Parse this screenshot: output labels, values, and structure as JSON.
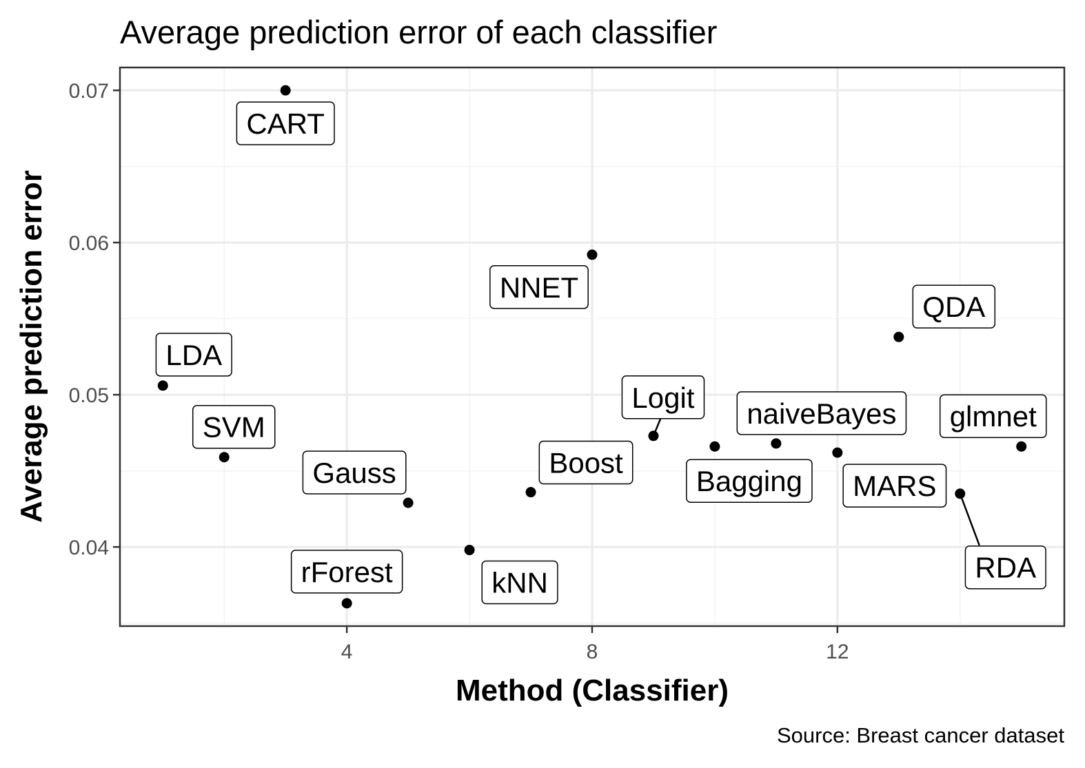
{
  "chart_data": {
    "type": "scatter",
    "title": "Average prediction error of each classifier",
    "xlabel": "Method (Classifier)",
    "ylabel": "Average prediction error",
    "caption": "Source: Breast cancer dataset",
    "xlim": [
      0.3,
      15.7
    ],
    "ylim": [
      0.0348,
      0.0715
    ],
    "x_ticks": [
      4,
      8,
      12
    ],
    "x_tick_labels": [
      "4",
      "8",
      "12"
    ],
    "y_ticks": [
      0.04,
      0.05,
      0.06,
      0.07
    ],
    "y_tick_labels": [
      "0.04",
      "0.05",
      "0.06",
      "0.07"
    ],
    "grid": true,
    "points": [
      {
        "label": "LDA",
        "x": 1,
        "y": 0.0506
      },
      {
        "label": "SVM",
        "x": 2,
        "y": 0.0459
      },
      {
        "label": "CART",
        "x": 3,
        "y": 0.07
      },
      {
        "label": "rForest",
        "x": 4,
        "y": 0.0363
      },
      {
        "label": "Gauss",
        "x": 5,
        "y": 0.0429
      },
      {
        "label": "kNN",
        "x": 6,
        "y": 0.0398
      },
      {
        "label": "Boost",
        "x": 7,
        "y": 0.0436
      },
      {
        "label": "NNET",
        "x": 8,
        "y": 0.0592
      },
      {
        "label": "Logit",
        "x": 9,
        "y": 0.0473
      },
      {
        "label": "Bagging",
        "x": 10,
        "y": 0.0466
      },
      {
        "label": "naiveBayes",
        "x": 11,
        "y": 0.0468
      },
      {
        "label": "MARS",
        "x": 12,
        "y": 0.0462
      },
      {
        "label": "QDA",
        "x": 13,
        "y": 0.0538
      },
      {
        "label": "RDA",
        "x": 14,
        "y": 0.0435
      },
      {
        "label": "glmnet",
        "x": 15,
        "y": 0.0466
      }
    ]
  }
}
